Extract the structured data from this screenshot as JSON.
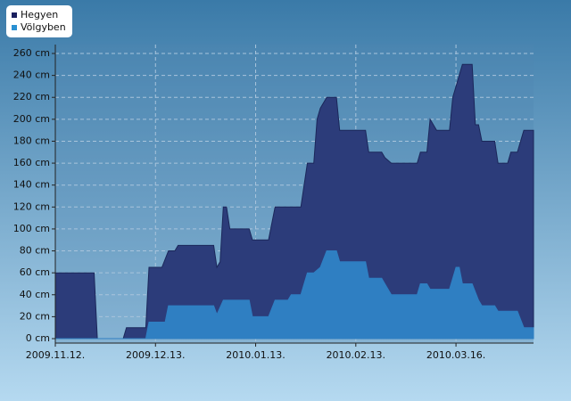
{
  "chart_data": {
    "type": "area",
    "xlim": [
      "2009.11.12.",
      "2010.04.09."
    ],
    "xticks": [
      "2009.11.12.",
      "2009.12.13.",
      "2010.01.13.",
      "2010.02.13.",
      "2010.03.16."
    ],
    "ylim": [
      0,
      260
    ],
    "yticks": [
      {
        "value": 0,
        "label": "0 cm"
      },
      {
        "value": 20,
        "label": "20 cm"
      },
      {
        "value": 40,
        "label": "40 cm"
      },
      {
        "value": 60,
        "label": "60 cm"
      },
      {
        "value": 80,
        "label": "80 cm"
      },
      {
        "value": 100,
        "label": "100 cm"
      },
      {
        "value": 120,
        "label": "120 cm"
      },
      {
        "value": 140,
        "label": "140 cm"
      },
      {
        "value": 160,
        "label": "160 cm"
      },
      {
        "value": 180,
        "label": "180 cm"
      },
      {
        "value": 200,
        "label": "200 cm"
      },
      {
        "value": 220,
        "label": "220 cm"
      },
      {
        "value": 240,
        "label": "240 cm"
      },
      {
        "value": 260,
        "label": "260 cm"
      }
    ],
    "grid": true,
    "legend": "top-left",
    "series": [
      {
        "name": "Hegyen",
        "color": "#2c3c7a",
        "legend_color": "#1a1f5e",
        "x": [
          "2009.11.12.",
          "2009.11.24.",
          "2009.11.25.",
          "2009.12.03.",
          "2009.12.04.",
          "2009.12.10.",
          "2009.12.11.",
          "2009.12.15.",
          "2009.12.17.",
          "2009.12.19.",
          "2009.12.20.",
          "2009.12.31.",
          "2010.01.01.",
          "2010.01.02.",
          "2010.01.03.",
          "2010.01.04.",
          "2010.01.05.",
          "2010.01.11.",
          "2010.01.12.",
          "2010.01.17.",
          "2010.01.19.",
          "2010.01.27.",
          "2010.01.29.",
          "2010.01.31.",
          "2010.02.01.",
          "2010.02.02.",
          "2010.02.04.",
          "2010.02.07.",
          "2010.02.08.",
          "2010.02.16.",
          "2010.02.17.",
          "2010.02.21.",
          "2010.02.22.",
          "2010.02.24.",
          "2010.03.04.",
          "2010.03.05.",
          "2010.03.07.",
          "2010.03.08.",
          "2010.03.10.",
          "2010.03.14.",
          "2010.03.15.",
          "2010.03.16.",
          "2010.03.18.",
          "2010.03.21.",
          "2010.03.22.",
          "2010.03.23.",
          "2010.03.24.",
          "2010.03.28.",
          "2010.03.29.",
          "2010.04.01.",
          "2010.04.02.",
          "2010.04.04.",
          "2010.04.06.",
          "2010.04.09."
        ],
        "values": [
          60,
          60,
          0,
          0,
          10,
          10,
          65,
          65,
          80,
          80,
          85,
          85,
          65,
          70,
          120,
          120,
          100,
          100,
          90,
          90,
          120,
          120,
          160,
          160,
          200,
          210,
          220,
          220,
          190,
          190,
          170,
          170,
          165,
          160,
          160,
          170,
          170,
          200,
          190,
          190,
          220,
          230,
          250,
          250,
          195,
          195,
          180,
          180,
          160,
          160,
          170,
          170,
          190,
          190
        ]
      },
      {
        "name": "Völgyben",
        "color": "#2f7fc2",
        "legend_color": "#2a90d2",
        "x": [
          "2009.11.12.",
          "2009.12.10.",
          "2009.12.11.",
          "2009.12.16.",
          "2009.12.17.",
          "2009.12.31.",
          "2010.01.01.",
          "2010.01.03.",
          "2010.01.11.",
          "2010.01.12.",
          "2010.01.17.",
          "2010.01.19.",
          "2010.01.23.",
          "2010.01.24.",
          "2010.01.27.",
          "2010.01.29.",
          "2010.01.31.",
          "2010.02.02.",
          "2010.02.04.",
          "2010.02.07.",
          "2010.02.08.",
          "2010.02.16.",
          "2010.02.17.",
          "2010.02.21.",
          "2010.02.22.",
          "2010.02.24.",
          "2010.03.04.",
          "2010.03.05.",
          "2010.03.07.",
          "2010.03.08.",
          "2010.03.14.",
          "2010.03.16.",
          "2010.03.17.",
          "2010.03.18.",
          "2010.03.21.",
          "2010.03.23.",
          "2010.03.24.",
          "2010.03.28.",
          "2010.03.29.",
          "2010.04.04.",
          "2010.04.06.",
          "2010.04.09."
        ],
        "values": [
          0,
          0,
          15,
          15,
          30,
          30,
          22,
          35,
          35,
          20,
          20,
          35,
          35,
          40,
          40,
          60,
          60,
          65,
          80,
          80,
          70,
          70,
          55,
          55,
          50,
          40,
          40,
          50,
          50,
          45,
          45,
          65,
          65,
          50,
          50,
          35,
          30,
          30,
          25,
          25,
          10,
          10
        ]
      }
    ]
  }
}
